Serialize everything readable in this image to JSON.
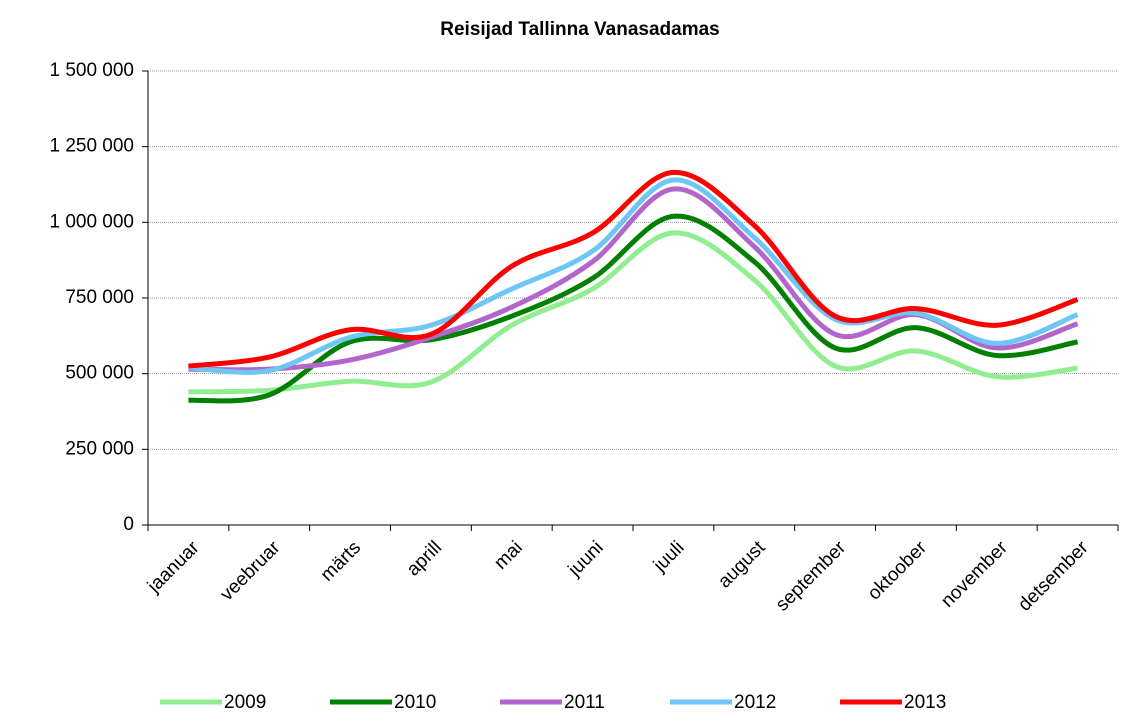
{
  "chart_data": {
    "type": "line",
    "title": "Reisijad Tallinna Vanasadamas",
    "categories": [
      "jaanuar",
      "veebruar",
      "märts",
      "aprill",
      "mai",
      "juuni",
      "juuli",
      "august",
      "september",
      "oktoober",
      "november",
      "detsember"
    ],
    "series": [
      {
        "name": "2009",
        "color": "#90ee90",
        "values": [
          440000,
          445000,
          475000,
          472000,
          660000,
          780000,
          965000,
          810000,
          525000,
          575000,
          490000,
          518000
        ]
      },
      {
        "name": "2010",
        "color": "#008000",
        "values": [
          412000,
          430000,
          605000,
          612000,
          690000,
          815000,
          1020000,
          870000,
          585000,
          652000,
          560000,
          605000
        ]
      },
      {
        "name": "2011",
        "color": "#b266cc",
        "values": [
          515000,
          515000,
          545000,
          620000,
          720000,
          870000,
          1110000,
          920000,
          630000,
          695000,
          585000,
          665000
        ]
      },
      {
        "name": "2012",
        "color": "#6ec6f5",
        "values": [
          520000,
          510000,
          620000,
          660000,
          780000,
          905000,
          1140000,
          950000,
          680000,
          700000,
          600000,
          695000
        ]
      },
      {
        "name": "2013",
        "color": "#ff0000",
        "values": [
          525000,
          555000,
          645000,
          630000,
          855000,
          965000,
          1165000,
          990000,
          690000,
          715000,
          660000,
          745000
        ]
      }
    ],
    "ylim": [
      0,
      1500000
    ],
    "yticks": [
      0,
      {
        "value": 250000,
        "label": "250 000"
      },
      {
        "value": 500000,
        "label": "500 000"
      },
      {
        "value": 750000,
        "label": "750 000"
      },
      {
        "value": 1000000,
        "label": "1 000 000"
      },
      {
        "value": 1250000,
        "label": "1 250 000"
      },
      {
        "value": 1500000,
        "label": "1 500 000"
      }
    ],
    "grid": true,
    "legend": "bottom"
  }
}
